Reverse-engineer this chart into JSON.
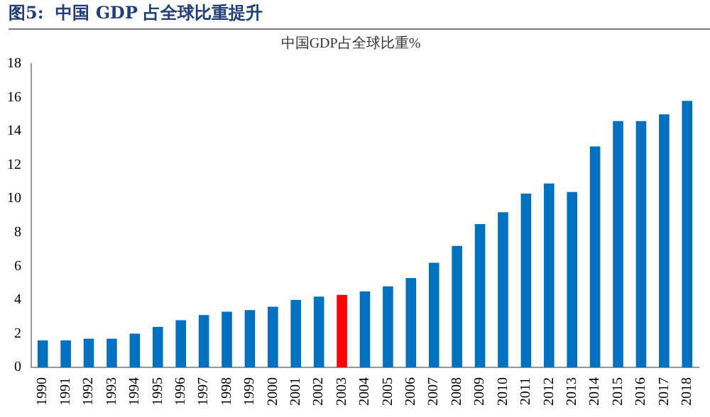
{
  "chart_data": {
    "type": "bar",
    "title": "图5:  中国 GDP 占全球比重提升",
    "subtitle": "中国GDP占全球比重%",
    "categories": [
      "1990",
      "1991",
      "1992",
      "1993",
      "1994",
      "1995",
      "1996",
      "1997",
      "1998",
      "1999",
      "2000",
      "2001",
      "2002",
      "2003",
      "2004",
      "2005",
      "2006",
      "2007",
      "2008",
      "2009",
      "2010",
      "2011",
      "2012",
      "2013",
      "2014",
      "2015",
      "2016",
      "2017",
      "2018"
    ],
    "values": [
      1.6,
      1.6,
      1.7,
      1.7,
      2.0,
      2.4,
      2.8,
      3.1,
      3.3,
      3.4,
      3.6,
      4.0,
      4.2,
      4.3,
      4.5,
      4.8,
      5.3,
      6.2,
      7.2,
      8.5,
      9.2,
      10.3,
      10.9,
      10.4,
      13.1,
      14.6,
      14.6,
      15.0,
      15.8
    ],
    "colors": [
      "#0070c0",
      "#0070c0",
      "#0070c0",
      "#0070c0",
      "#0070c0",
      "#0070c0",
      "#0070c0",
      "#0070c0",
      "#0070c0",
      "#0070c0",
      "#0070c0",
      "#0070c0",
      "#0070c0",
      "#ff0000",
      "#0070c0",
      "#0070c0",
      "#0070c0",
      "#0070c0",
      "#0070c0",
      "#0070c0",
      "#0070c0",
      "#0070c0",
      "#0070c0",
      "#0070c0",
      "#0070c0",
      "#0070c0",
      "#0070c0",
      "#0070c0",
      "#0070c0"
    ],
    "ylim": [
      0,
      18
    ],
    "yticks": [
      0,
      2,
      4,
      6,
      8,
      10,
      12,
      14,
      16,
      18
    ],
    "grid": false,
    "legend": false
  }
}
